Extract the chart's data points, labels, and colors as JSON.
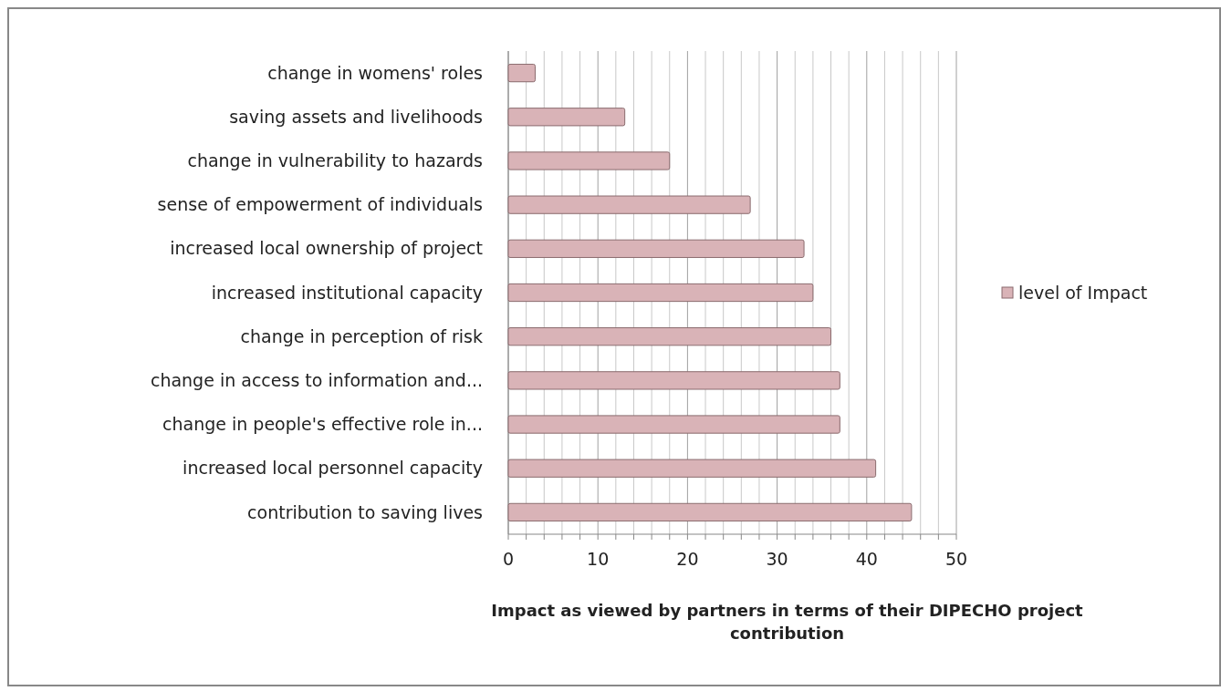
{
  "chart_data": {
    "type": "bar",
    "orientation": "horizontal",
    "xlabel": "Impact as viewed by partners in terms of their DIPECHO project contribution",
    "categories": [
      "change in womens' roles",
      "saving assets and livelihoods",
      "change in vulnerability to hazards",
      "sense of empowerment of individuals",
      "increased local ownership of project",
      "increased institutional capacity",
      "change in perception of risk",
      "change in access to information and...",
      "change in people's effective role in...",
      "increased local personnel capacity",
      "contribution to saving lives"
    ],
    "series": [
      {
        "name": "level of Impact",
        "color": "#d9b3b7",
        "values": [
          3,
          13,
          18,
          27,
          33,
          34,
          36,
          37,
          37,
          41,
          45
        ]
      }
    ],
    "xlim": [
      0,
      50
    ],
    "xticks": [
      0,
      {
        "value": 2,
        "label": null
      },
      {
        "value": 4,
        "label": null
      },
      {
        "value": 6,
        "label": null
      },
      {
        "value": 8,
        "label": null
      },
      10,
      {
        "value": 12,
        "label": null
      },
      {
        "value": 14,
        "label": null
      },
      {
        "value": 16,
        "label": null
      },
      {
        "value": 18,
        "label": null
      },
      20,
      {
        "value": 22,
        "label": null
      },
      {
        "value": 24,
        "label": null
      },
      {
        "value": 26,
        "label": null
      },
      {
        "value": 28,
        "label": null
      },
      30,
      {
        "value": 32,
        "label": null
      },
      {
        "value": 34,
        "label": null
      },
      {
        "value": 36,
        "label": null
      },
      {
        "value": 38,
        "label": null
      },
      40,
      {
        "value": 42,
        "label": null
      },
      {
        "value": 44,
        "label": null
      },
      {
        "value": 46,
        "label": null
      },
      {
        "value": 48,
        "label": null
      },
      50
    ],
    "grid": "x",
    "legend": "right"
  }
}
